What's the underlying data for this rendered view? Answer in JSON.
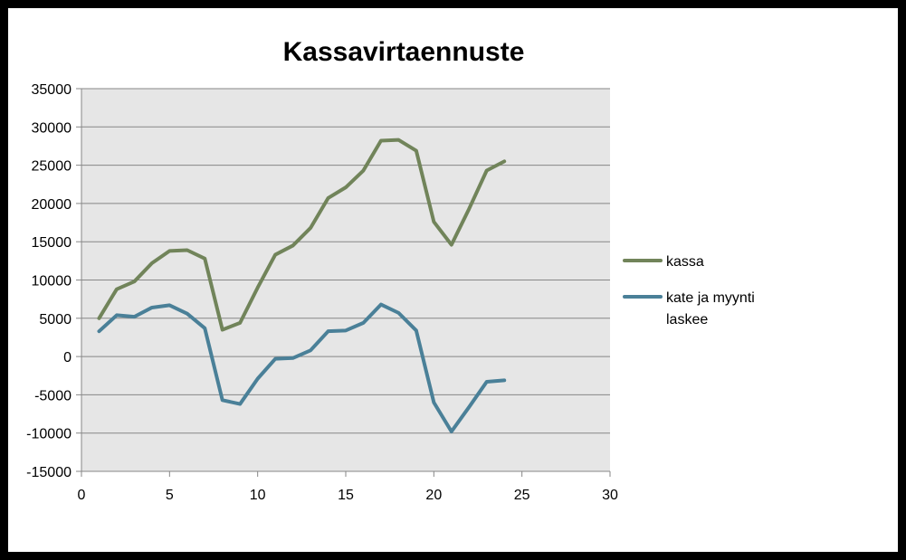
{
  "chart_data": {
    "type": "line",
    "title": "Kassavirtaennuste",
    "xlabel": "",
    "ylabel": "",
    "xlim": [
      0,
      30
    ],
    "ylim": [
      -15000,
      35000
    ],
    "x_ticks": [
      "0",
      "5",
      "10",
      "15",
      "20",
      "25",
      "30"
    ],
    "y_ticks": [
      "35000",
      "30000",
      "25000",
      "20000",
      "15000",
      "10000",
      "5000",
      "0",
      "-5000",
      "-10000",
      "-15000"
    ],
    "x_tick_values": [
      0,
      5,
      10,
      15,
      20,
      25,
      30
    ],
    "y_tick_values": [
      35000,
      30000,
      25000,
      20000,
      15000,
      10000,
      5000,
      0,
      -5000,
      -10000,
      -15000
    ],
    "grid": "horizontal",
    "legend_position": "right",
    "plot_background": "#e6e6e6",
    "x": [
      1,
      2,
      3,
      4,
      5,
      6,
      7,
      8,
      9,
      10,
      11,
      12,
      13,
      14,
      15,
      16,
      17,
      18,
      19,
      20,
      21,
      22,
      23,
      24
    ],
    "series": [
      {
        "name": "kassa",
        "color": "#71845a",
        "values": [
          5000,
          8800,
          9800,
          12200,
          13800,
          13900,
          12800,
          3500,
          4400,
          9000,
          13300,
          14500,
          16800,
          20700,
          22100,
          24300,
          28200,
          28300,
          26900,
          17600,
          14600,
          19300,
          24300,
          25500
        ]
      },
      {
        "name": "kate ja myynti laskee",
        "name_lines": [
          "kate ja myynti",
          "laskee"
        ],
        "color": "#4a8098",
        "values": [
          3300,
          5400,
          5200,
          6400,
          6700,
          5600,
          3700,
          -5700,
          -6200,
          -2900,
          -300,
          -200,
          800,
          3300,
          3400,
          4400,
          6800,
          5700,
          3400,
          -6000,
          -9800,
          -6600,
          -3300,
          -3100
        ]
      }
    ]
  }
}
